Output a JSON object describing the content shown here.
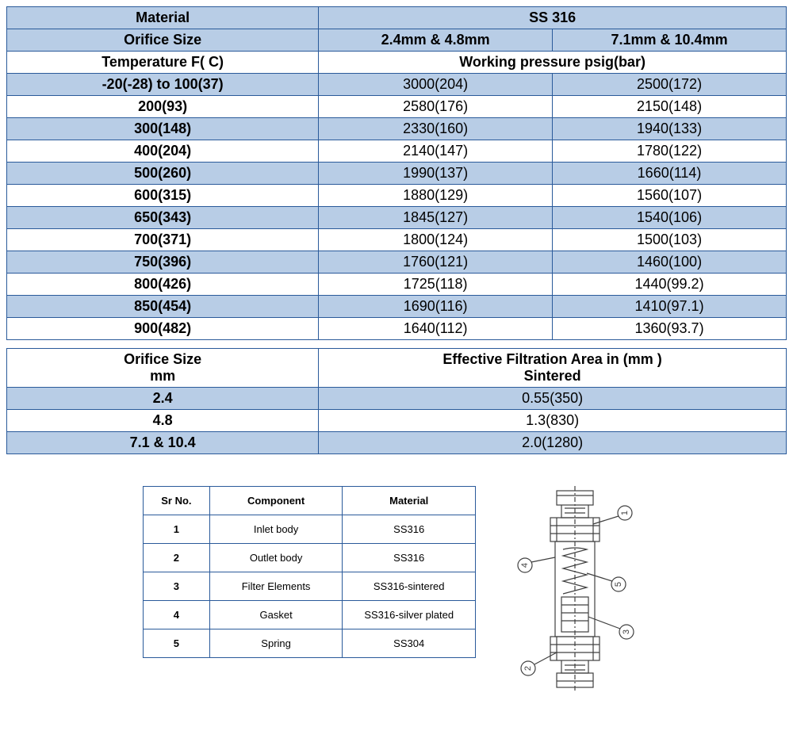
{
  "table1": {
    "colors": {
      "border": "#2a5a9a",
      "header_bg": "#b8cde6",
      "alt_row_bg": "#b8cde6",
      "row_bg": "#ffffff"
    },
    "header_rows": [
      {
        "label": "Material",
        "value": "SS 316"
      },
      {
        "label": "Orifice Size",
        "col1": "2.4mm & 4.8mm",
        "col2": "7.1mm & 10.4mm"
      },
      {
        "label": "Temperature F( C)",
        "value": "Working pressure psig(bar)"
      }
    ],
    "rows": [
      {
        "temp": "-20(-28) to 100(37)",
        "p1": "3000(204)",
        "p2": "2500(172)",
        "shade": true
      },
      {
        "temp": "200(93)",
        "p1": "2580(176)",
        "p2": "2150(148)",
        "shade": false
      },
      {
        "temp": "300(148)",
        "p1": "2330(160)",
        "p2": "1940(133)",
        "shade": true
      },
      {
        "temp": "400(204)",
        "p1": "2140(147)",
        "p2": "1780(122)",
        "shade": false
      },
      {
        "temp": "500(260)",
        "p1": "1990(137)",
        "p2": "1660(114)",
        "shade": true
      },
      {
        "temp": "600(315)",
        "p1": "1880(129)",
        "p2": "1560(107)",
        "shade": false
      },
      {
        "temp": "650(343)",
        "p1": "1845(127)",
        "p2": "1540(106)",
        "shade": true
      },
      {
        "temp": "700(371)",
        "p1": "1800(124)",
        "p2": "1500(103)",
        "shade": false
      },
      {
        "temp": "750(396)",
        "p1": "1760(121)",
        "p2": "1460(100)",
        "shade": true
      },
      {
        "temp": "800(426)",
        "p1": "1725(118)",
        "p2": "1440(99.2)",
        "shade": false
      },
      {
        "temp": "850(454)",
        "p1": "1690(116)",
        "p2": "1410(97.1)",
        "shade": true
      },
      {
        "temp": "900(482)",
        "p1": "1640(112)",
        "p2": "1360(93.7)",
        "shade": false
      }
    ]
  },
  "table2": {
    "header": {
      "col1_line1": "Orifice Size",
      "col1_line2": "mm",
      "col2_line1": "Effective Filtration Area in (mm )",
      "col2_line2": "Sintered"
    },
    "rows": [
      {
        "size": "2.4",
        "area": "0.55(350)",
        "shade": true
      },
      {
        "size": "4.8",
        "area": "1.3(830)",
        "shade": false
      },
      {
        "size": "7.1 & 10.4",
        "area": "2.0(1280)",
        "shade": true
      }
    ]
  },
  "table3": {
    "columns": [
      "Sr No.",
      "Component",
      "Material"
    ],
    "rows": [
      {
        "sr": "1",
        "component": "Inlet body",
        "material": "SS316"
      },
      {
        "sr": "2",
        "component": "Outlet body",
        "material": "SS316"
      },
      {
        "sr": "3",
        "component": "Filter Elements",
        "material": "SS316-sintered"
      },
      {
        "sr": "4",
        "component": "Gasket",
        "material": "SS316-silver plated"
      },
      {
        "sr": "5",
        "component": "Spring",
        "material": "SS304"
      }
    ]
  },
  "diagram": {
    "stroke": "#404040",
    "labels": [
      "1",
      "2",
      "3",
      "4",
      "5"
    ]
  }
}
